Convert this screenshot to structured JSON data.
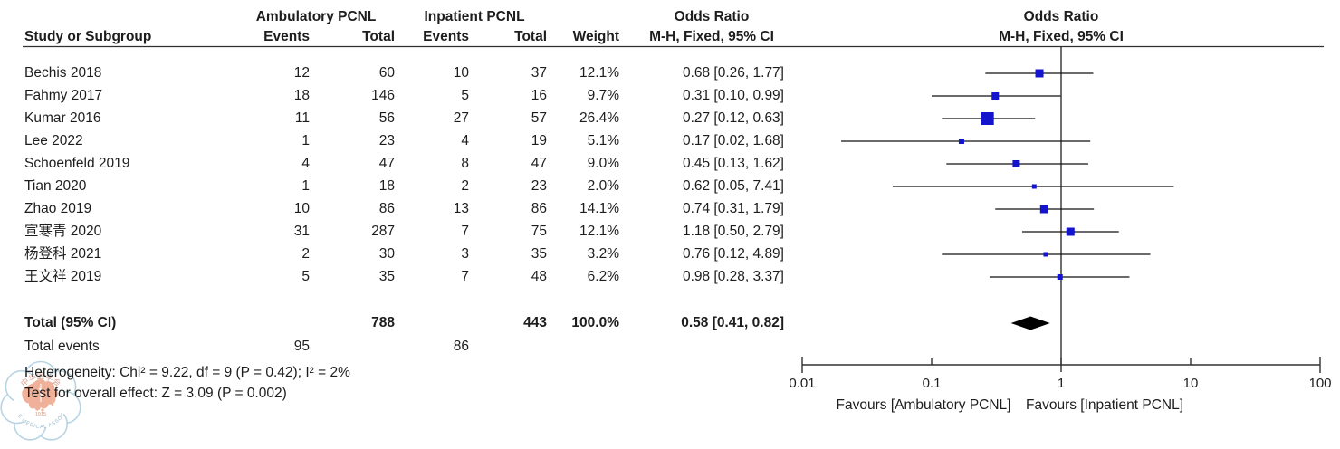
{
  "header": {
    "group1": "Ambulatory PCNL",
    "group2": "Inpatient PCNL",
    "or_col_title": "Odds Ratio",
    "or_plot_title": "Odds Ratio",
    "study_col": "Study or Subgroup",
    "events_col_1": "Events",
    "total_col_1": "Total",
    "events_col_2": "Events",
    "total_col_2": "Total",
    "weight_col": "Weight",
    "method_col": "M-H, Fixed, 95% CI",
    "method_plot_col": "M-H, Fixed, 95% CI"
  },
  "chart_data": {
    "type": "forest",
    "x_scale": "log10",
    "x_ticks": [
      0.01,
      0.1,
      1,
      10,
      100
    ],
    "x_tick_labels": [
      "0.01",
      "0.1",
      "1",
      "10",
      "100"
    ],
    "x_range": [
      0.01,
      100
    ],
    "null_line": 1,
    "effect_measure": "Odds Ratio",
    "method": "M-H, Fixed, 95% CI",
    "axis_label_left": "Favours [Ambulatory PCNL]",
    "axis_label_right": "Favours [Inpatient PCNL]",
    "studies": [
      {
        "name": "Bechis 2018",
        "events_amb": "12",
        "total_amb": "60",
        "events_inp": "10",
        "total_inp": "37",
        "weight": "12.1%",
        "weight_pct": 12.1,
        "or": 0.68,
        "ci_low": 0.26,
        "ci_high": 1.77,
        "or_text": "0.68 [0.26, 1.77]"
      },
      {
        "name": "Fahmy 2017",
        "events_amb": "18",
        "total_amb": "146",
        "events_inp": "5",
        "total_inp": "16",
        "weight": "9.7%",
        "weight_pct": 9.7,
        "or": 0.31,
        "ci_low": 0.1,
        "ci_high": 0.99,
        "or_text": "0.31 [0.10, 0.99]"
      },
      {
        "name": "Kumar 2016",
        "events_amb": "11",
        "total_amb": "56",
        "events_inp": "27",
        "total_inp": "57",
        "weight": "26.4%",
        "weight_pct": 26.4,
        "or": 0.27,
        "ci_low": 0.12,
        "ci_high": 0.63,
        "or_text": "0.27 [0.12, 0.63]"
      },
      {
        "name": "Lee 2022",
        "events_amb": "1",
        "total_amb": "23",
        "events_inp": "4",
        "total_inp": "19",
        "weight": "5.1%",
        "weight_pct": 5.1,
        "or": 0.17,
        "ci_low": 0.02,
        "ci_high": 1.68,
        "or_text": "0.17 [0.02, 1.68]"
      },
      {
        "name": "Schoenfeld 2019",
        "events_amb": "4",
        "total_amb": "47",
        "events_inp": "8",
        "total_inp": "47",
        "weight": "9.0%",
        "weight_pct": 9.0,
        "or": 0.45,
        "ci_low": 0.13,
        "ci_high": 1.62,
        "or_text": "0.45 [0.13, 1.62]"
      },
      {
        "name": "Tian 2020",
        "events_amb": "1",
        "total_amb": "18",
        "events_inp": "2",
        "total_inp": "23",
        "weight": "2.0%",
        "weight_pct": 2.0,
        "or": 0.62,
        "ci_low": 0.05,
        "ci_high": 7.41,
        "or_text": "0.62 [0.05, 7.41]"
      },
      {
        "name": "Zhao 2019",
        "events_amb": "10",
        "total_amb": "86",
        "events_inp": "13",
        "total_inp": "86",
        "weight": "14.1%",
        "weight_pct": 14.1,
        "or": 0.74,
        "ci_low": 0.31,
        "ci_high": 1.79,
        "or_text": "0.74 [0.31, 1.79]"
      },
      {
        "name": "宣寒青 2020",
        "events_amb": "31",
        "total_amb": "287",
        "events_inp": "7",
        "total_inp": "75",
        "weight": "12.1%",
        "weight_pct": 12.1,
        "or": 1.18,
        "ci_low": 0.5,
        "ci_high": 2.79,
        "or_text": "1.18 [0.50, 2.79]"
      },
      {
        "name": "杨登科 2021",
        "events_amb": "2",
        "total_amb": "30",
        "events_inp": "3",
        "total_inp": "35",
        "weight": "3.2%",
        "weight_pct": 3.2,
        "or": 0.76,
        "ci_low": 0.12,
        "ci_high": 4.89,
        "or_text": "0.76 [0.12, 4.89]"
      },
      {
        "name": "王文祥 2019",
        "events_amb": "5",
        "total_amb": "35",
        "events_inp": "7",
        "total_inp": "48",
        "weight": "6.2%",
        "weight_pct": 6.2,
        "or": 0.98,
        "ci_low": 0.28,
        "ci_high": 3.37,
        "or_text": "0.98 [0.28, 3.37]"
      }
    ],
    "total": {
      "label": "Total (95% CI)",
      "total_amb": "788",
      "total_inp": "443",
      "weight": "100.0%",
      "or": 0.58,
      "ci_low": 0.41,
      "ci_high": 0.82,
      "or_text": "0.58 [0.41, 0.82]"
    },
    "total_events": {
      "label": "Total events",
      "events_amb": "95",
      "events_inp": "86"
    },
    "heterogeneity": "Heterogeneity: Chi² = 9.22, df = 9 (P = 0.42); I² = 2%",
    "overall_effect": "Test for overall effect: Z = 3.09 (P = 0.002)"
  },
  "watermark": {
    "top_text": "中华医学会",
    "year": "1915",
    "ring_text": "CHINESE MEDICAL ASSOCIATION"
  },
  "colors": {
    "marker": "#1414cc",
    "line": "#303030",
    "diamond": "#000000",
    "text": "#1d1d1d",
    "watermark_ring": "#b7d4e3",
    "watermark_map": "#f0b19a",
    "watermark_text": "#9ab8c8",
    "watermark_cn": "#dba08c"
  }
}
